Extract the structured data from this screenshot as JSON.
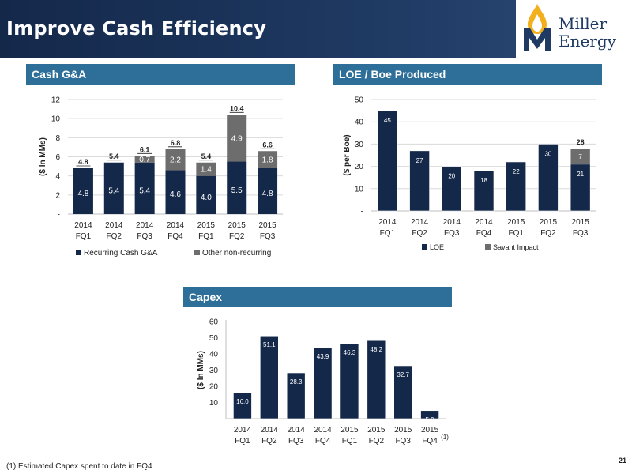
{
  "header": {
    "title": "Improve Cash Efficiency"
  },
  "logo": {
    "line1": "Miller",
    "line2": "Energy",
    "icon": "flame-drop-m-logo"
  },
  "sections": {
    "gna": "Cash G&A",
    "loe": "LOE / Boe Produced",
    "capex": "Capex"
  },
  "footnote": "(1)   Estimated Capex spent to date in FQ4",
  "page_number": "21",
  "colors": {
    "navy": "#14284a",
    "gray": "#6d6d6d",
    "bar_header": "#2e6f99"
  },
  "chart_data": [
    {
      "id": "gna",
      "type": "bar",
      "stacked": true,
      "categories": [
        [
          "2014",
          "FQ1"
        ],
        [
          "2014",
          "FQ2"
        ],
        [
          "2014",
          "FQ3"
        ],
        [
          "2014",
          "FQ4"
        ],
        [
          "2015",
          "FQ1"
        ],
        [
          "2015",
          "FQ2"
        ],
        [
          "2015",
          "FQ3"
        ]
      ],
      "series": [
        {
          "name": "Recurring Cash G&A",
          "values": [
            4.8,
            5.4,
            5.4,
            4.6,
            4.0,
            5.5,
            4.8
          ],
          "labels": [
            "4.8",
            "5.4",
            "5.4",
            "4.6",
            "4.0",
            "5.5",
            "4.8"
          ]
        },
        {
          "name": "Other non-recurring",
          "values": [
            0,
            0,
            0.7,
            2.2,
            1.4,
            4.9,
            1.8
          ],
          "labels": [
            "",
            "",
            "0.7",
            "2.2",
            "1.4",
            "4.9",
            "1.8"
          ]
        }
      ],
      "totals": [
        "4.8",
        "5.4",
        "6.1",
        "6.8",
        "5.4",
        "10.4",
        "6.6"
      ],
      "ylabel": "($ In MMs)",
      "ylim": [
        0,
        12
      ],
      "yticks": [
        0,
        2,
        4,
        6,
        8,
        10,
        12
      ],
      "ytick_labels": [
        "-",
        "2",
        "4",
        "6",
        "8",
        "10",
        "12"
      ],
      "legend": "bottom"
    },
    {
      "id": "loe",
      "type": "bar",
      "stacked": true,
      "categories": [
        [
          "2014",
          "FQ1"
        ],
        [
          "2014",
          "FQ2"
        ],
        [
          "2014",
          "FQ3"
        ],
        [
          "2014",
          "FQ4"
        ],
        [
          "2015",
          "FQ1"
        ],
        [
          "2015",
          "FQ2"
        ],
        [
          "2015",
          "FQ3"
        ]
      ],
      "series": [
        {
          "name": "LOE",
          "values": [
            45,
            27,
            20,
            18,
            22,
            30,
            21
          ],
          "labels": [
            "45",
            "27",
            "20",
            "18",
            "22",
            "30",
            "21"
          ]
        },
        {
          "name": "Savant Impact",
          "values": [
            0,
            0,
            0,
            0,
            0,
            0,
            7
          ],
          "labels": [
            "",
            "",
            "",
            "",
            "",
            "",
            "7"
          ]
        }
      ],
      "totals": [
        "",
        "",
        "",
        "",
        "",
        "",
        "28"
      ],
      "ylabel": "($ per Boe)",
      "ylim": [
        0,
        50
      ],
      "yticks": [
        0,
        10,
        20,
        30,
        40,
        50
      ],
      "ytick_labels": [
        "-",
        "10",
        "20",
        "30",
        "40",
        "50"
      ],
      "legend": "bottom"
    },
    {
      "id": "capex",
      "type": "bar",
      "stacked": false,
      "categories": [
        [
          "2014",
          "FQ1"
        ],
        [
          "2014",
          "FQ2"
        ],
        [
          "2014",
          "FQ3"
        ],
        [
          "2014",
          "FQ4"
        ],
        [
          "2015",
          "FQ1"
        ],
        [
          "2015",
          "FQ2"
        ],
        [
          "2015",
          "FQ3"
        ],
        [
          "2015",
          "FQ4"
        ]
      ],
      "series": [
        {
          "name": "",
          "values": [
            16.0,
            51.1,
            28.3,
            43.9,
            46.3,
            48.2,
            32.7,
            5.0
          ],
          "labels": [
            "16.0",
            "51.1",
            "28.3",
            "43.9",
            "46.3",
            "48.2",
            "32.7",
            "5.0"
          ]
        }
      ],
      "category_notes": [
        "",
        "",
        "",
        "",
        "",
        "",
        "",
        "(1)"
      ],
      "ylabel": "($ In MMs)",
      "ylim": [
        0,
        60
      ],
      "yticks": [
        0,
        10,
        20,
        30,
        40,
        50,
        60
      ],
      "ytick_labels": [
        "-",
        "10",
        "20",
        "30",
        "40",
        "50",
        "60"
      ],
      "legend": "none"
    }
  ]
}
